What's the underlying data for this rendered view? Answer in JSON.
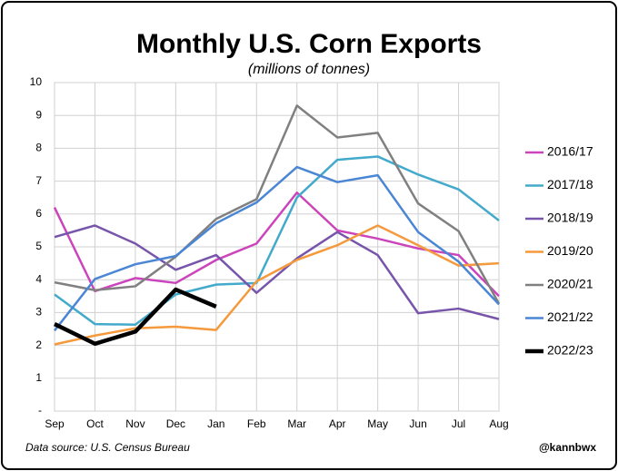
{
  "chart_data": {
    "type": "line",
    "title": "Monthly U.S. Corn Exports",
    "subtitle": "(millions of tonnes)",
    "source": "Data source: U.S. Census Bureau",
    "credit": "@kannbwx",
    "categories": [
      "Sep",
      "Oct",
      "Nov",
      "Dec",
      "Jan",
      "Feb",
      "Mar",
      "Apr",
      "May",
      "Jun",
      "Jul",
      "Aug"
    ],
    "ylim": [
      0,
      10
    ],
    "yticks": [
      {
        "value": 0,
        "label": "-"
      },
      1,
      2,
      3,
      4,
      5,
      6,
      7,
      8,
      9,
      10
    ],
    "grid": true,
    "legend": "right",
    "series": [
      {
        "name": "2016/17",
        "color": "#cc44bb",
        "values": [
          6.2,
          3.65,
          4.05,
          3.9,
          4.6,
          5.1,
          6.65,
          5.5,
          5.25,
          4.95,
          4.75,
          3.5
        ]
      },
      {
        "name": "2017/18",
        "color": "#44aacc",
        "values": [
          3.55,
          2.65,
          2.63,
          3.55,
          3.85,
          3.9,
          6.5,
          7.65,
          7.75,
          7.2,
          6.75,
          5.8
        ]
      },
      {
        "name": "2018/19",
        "color": "#7755aa",
        "values": [
          5.3,
          5.65,
          5.1,
          4.3,
          4.75,
          3.6,
          4.65,
          5.45,
          4.75,
          2.98,
          3.12,
          2.8
        ]
      },
      {
        "name": "2019/20",
        "color": "#f5993d",
        "values": [
          2.03,
          2.3,
          2.52,
          2.57,
          2.47,
          3.95,
          4.6,
          5.05,
          5.65,
          5.05,
          4.43,
          4.5
        ]
      },
      {
        "name": "2020/21",
        "color": "#808080",
        "values": [
          3.92,
          3.68,
          3.8,
          4.7,
          5.85,
          6.45,
          9.3,
          8.33,
          8.47,
          6.32,
          5.48,
          3.27
        ]
      },
      {
        "name": "2021/22",
        "color": "#4a86d4",
        "values": [
          2.45,
          4.02,
          4.47,
          4.72,
          5.72,
          6.35,
          7.43,
          6.97,
          7.18,
          5.45,
          4.55,
          3.25
        ]
      },
      {
        "name": "2022/23",
        "color": "#000000",
        "values": [
          2.65,
          2.05,
          2.42,
          3.7,
          3.18,
          null,
          null,
          null,
          null,
          null,
          null,
          null
        ]
      }
    ]
  }
}
